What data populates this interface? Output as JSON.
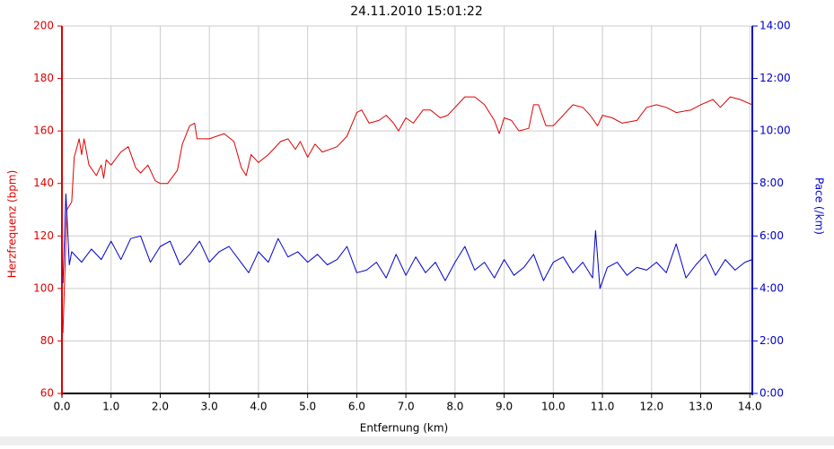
{
  "chart_data": {
    "type": "line",
    "title": "24.11.2010 15:01:22",
    "x_label": "Entfernung (km)",
    "y_label": "Herzfrequenz (bpm)",
    "y2_label": "Pace (/km)",
    "xlim": [
      0,
      14.05
    ],
    "xticks": [
      {
        "value": 0,
        "label": "0.0"
      },
      {
        "value": 1,
        "label": "1.0"
      },
      {
        "value": 2,
        "label": "2.0"
      },
      {
        "value": 3,
        "label": "3.0"
      },
      {
        "value": 4,
        "label": "4.0"
      },
      {
        "value": 5,
        "label": "5.0"
      },
      {
        "value": 6,
        "label": "6.0"
      },
      {
        "value": 7,
        "label": "7.0"
      },
      {
        "value": 8,
        "label": "8.0"
      },
      {
        "value": 9,
        "label": "9.0"
      },
      {
        "value": 10,
        "label": "10.0"
      },
      {
        "value": 11,
        "label": "11.0"
      },
      {
        "value": 12,
        "label": "12.0"
      },
      {
        "value": 13,
        "label": "13.0"
      },
      {
        "value": 14,
        "label": "14.0"
      }
    ],
    "ylim": [
      60,
      200
    ],
    "yticks": [
      60,
      80,
      100,
      120,
      140,
      160,
      180,
      200
    ],
    "y2lim": [
      0,
      14
    ],
    "y2ticks": [
      {
        "value": 0,
        "label": "0:00"
      },
      {
        "value": 2,
        "label": "2:00"
      },
      {
        "value": 4,
        "label": "4:00"
      },
      {
        "value": 6,
        "label": "6:00"
      },
      {
        "value": 8,
        "label": "8:00"
      },
      {
        "value": 10,
        "label": "10:00"
      },
      {
        "value": 12,
        "label": "12:00"
      },
      {
        "value": 14,
        "label": "14:00"
      }
    ],
    "grid": true,
    "y_color": "#e00000",
    "y2_color": "#0000cc",
    "series": [
      {
        "color": "#e00000",
        "axis": "y",
        "x": [
          0.02,
          0.1,
          0.2,
          0.25,
          0.35,
          0.4,
          0.45,
          0.55,
          0.7,
          0.8,
          0.85,
          0.9,
          1.0,
          1.2,
          1.35,
          1.5,
          1.6,
          1.75,
          1.9,
          2.0,
          2.15,
          2.35,
          2.45,
          2.6,
          2.7,
          2.75,
          3.0,
          3.3,
          3.5,
          3.65,
          3.75,
          3.85,
          4.0,
          4.2,
          4.45,
          4.6,
          4.75,
          4.85,
          5.0,
          5.15,
          5.3,
          5.6,
          5.8,
          6.0,
          6.1,
          6.25,
          6.45,
          6.6,
          6.75,
          6.85,
          7.0,
          7.15,
          7.35,
          7.5,
          7.7,
          7.85,
          8.0,
          8.2,
          8.4,
          8.6,
          8.8,
          8.9,
          9.0,
          9.15,
          9.3,
          9.5,
          9.6,
          9.7,
          9.85,
          10.0,
          10.2,
          10.4,
          10.6,
          10.75,
          10.9,
          11.0,
          11.2,
          11.4,
          11.7,
          11.9,
          12.1,
          12.3,
          12.5,
          12.8,
          13.0,
          13.25,
          13.4,
          13.6,
          13.8,
          14.05
        ],
        "values": [
          83,
          130,
          133,
          150,
          157,
          151,
          157,
          147,
          143,
          147,
          142,
          149,
          147,
          152,
          154,
          146,
          144,
          147,
          141,
          140,
          140,
          145,
          155,
          162,
          163,
          157,
          157,
          159,
          156,
          146,
          143,
          151,
          148,
          151,
          156,
          157,
          153,
          156,
          150,
          155,
          152,
          154,
          158,
          167,
          168,
          163,
          164,
          166,
          163,
          160,
          165,
          163,
          168,
          168,
          165,
          166,
          169,
          173,
          173,
          170,
          164,
          159,
          165,
          164,
          160,
          161,
          170,
          170,
          162,
          162,
          166,
          170,
          169,
          166,
          162,
          166,
          165,
          163,
          164,
          169,
          170,
          169,
          167,
          168,
          170,
          172,
          169,
          173,
          172,
          170
        ]
      },
      {
        "color": "#0000cc",
        "axis": "y2",
        "x": [
          0.02,
          0.08,
          0.15,
          0.2,
          0.4,
          0.6,
          0.8,
          1.0,
          1.2,
          1.4,
          1.6,
          1.8,
          2.0,
          2.2,
          2.4,
          2.6,
          2.8,
          3.0,
          3.2,
          3.4,
          3.6,
          3.8,
          4.0,
          4.2,
          4.4,
          4.6,
          4.8,
          5.0,
          5.2,
          5.4,
          5.6,
          5.8,
          6.0,
          6.2,
          6.4,
          6.6,
          6.8,
          7.0,
          7.2,
          7.4,
          7.6,
          7.8,
          8.0,
          8.2,
          8.4,
          8.6,
          8.8,
          9.0,
          9.2,
          9.4,
          9.6,
          9.8,
          10.0,
          10.2,
          10.4,
          10.6,
          10.8,
          10.86,
          10.95,
          11.1,
          11.3,
          11.5,
          11.7,
          11.9,
          12.1,
          12.3,
          12.5,
          12.7,
          12.9,
          13.1,
          13.3,
          13.5,
          13.7,
          13.9,
          14.05
        ],
        "values": [
          4.2,
          7.6,
          4.9,
          5.4,
          5.0,
          5.5,
          5.1,
          5.8,
          5.1,
          5.9,
          6.0,
          5.0,
          5.6,
          5.8,
          4.9,
          5.3,
          5.8,
          5.0,
          5.4,
          5.6,
          5.1,
          4.6,
          5.4,
          5.0,
          5.9,
          5.2,
          5.4,
          5.0,
          5.3,
          4.9,
          5.1,
          5.6,
          4.6,
          4.7,
          5.0,
          4.4,
          5.3,
          4.5,
          5.2,
          4.6,
          5.0,
          4.3,
          5.0,
          5.6,
          4.7,
          5.0,
          4.4,
          5.1,
          4.5,
          4.8,
          5.3,
          4.3,
          5.0,
          5.2,
          4.6,
          5.0,
          4.4,
          6.2,
          4.0,
          4.8,
          5.0,
          4.5,
          4.8,
          4.7,
          5.0,
          4.6,
          5.7,
          4.4,
          4.9,
          5.3,
          4.5,
          5.1,
          4.7,
          5.0,
          5.1
        ]
      }
    ]
  }
}
